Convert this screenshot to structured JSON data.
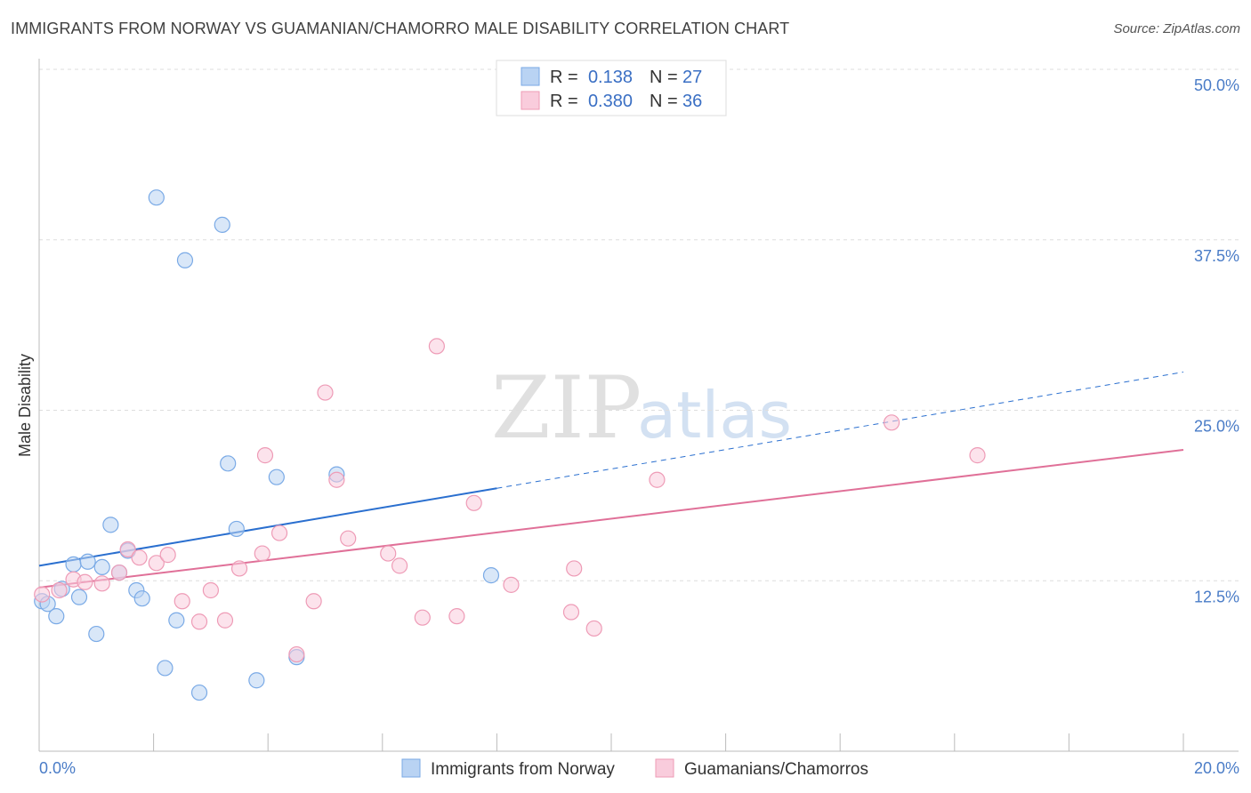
{
  "header": {
    "title": "IMMIGRANTS FROM NORWAY VS GUAMANIAN/CHAMORRO MALE DISABILITY CORRELATION CHART",
    "source": "Source: ZipAtlas.com"
  },
  "watermark": {
    "zip": "ZIP",
    "atlas": "atlas"
  },
  "chart_data": {
    "type": "scatter",
    "title": "IMMIGRANTS FROM NORWAY VS GUAMANIAN/CHAMORRO MALE DISABILITY CORRELATION CHART",
    "xlabel": "",
    "ylabel": "Male Disability",
    "xlim": [
      0,
      20
    ],
    "ylim": [
      0,
      50
    ],
    "x_tick_labels": [
      "0.0%",
      "20.0%"
    ],
    "y_ticks": [
      12.5,
      25.0,
      37.5,
      50.0
    ],
    "y_tick_labels": [
      "12.5%",
      "25.0%",
      "37.5%",
      "50.0%"
    ],
    "grid": true,
    "legend_placement": "top-center",
    "legend": {
      "rows": [
        {
          "r_label": "R =",
          "r_value": "0.138",
          "n_label": "N =",
          "n_value": "27"
        },
        {
          "r_label": "R =",
          "r_value": "0.380",
          "n_label": "N =",
          "n_value": "36"
        }
      ]
    },
    "series": [
      {
        "name": "Immigrants from Norway",
        "color": "#7aaae6",
        "fill": "#b9d3f3",
        "line_color": "#2a6fcf",
        "trend": {
          "x0": 0,
          "y0": 13.6,
          "x1": 20,
          "y1": 27.8,
          "solid_until": 8.0
        },
        "points": [
          {
            "x": 0.05,
            "y": 11.0
          },
          {
            "x": 0.15,
            "y": 10.8
          },
          {
            "x": 0.3,
            "y": 9.9
          },
          {
            "x": 0.4,
            "y": 11.9
          },
          {
            "x": 0.6,
            "y": 13.7
          },
          {
            "x": 0.7,
            "y": 11.3
          },
          {
            "x": 0.85,
            "y": 13.9
          },
          {
            "x": 1.0,
            "y": 8.6
          },
          {
            "x": 1.1,
            "y": 13.5
          },
          {
            "x": 1.25,
            "y": 16.6
          },
          {
            "x": 1.4,
            "y": 13.1
          },
          {
            "x": 1.55,
            "y": 14.7
          },
          {
            "x": 1.7,
            "y": 11.8
          },
          {
            "x": 1.8,
            "y": 11.2
          },
          {
            "x": 2.05,
            "y": 40.6
          },
          {
            "x": 2.2,
            "y": 6.1
          },
          {
            "x": 2.4,
            "y": 9.6
          },
          {
            "x": 2.55,
            "y": 36.0
          },
          {
            "x": 2.8,
            "y": 4.3
          },
          {
            "x": 3.2,
            "y": 38.6
          },
          {
            "x": 3.3,
            "y": 21.1
          },
          {
            "x": 3.45,
            "y": 16.3
          },
          {
            "x": 3.8,
            "y": 5.2
          },
          {
            "x": 4.15,
            "y": 20.1
          },
          {
            "x": 4.5,
            "y": 6.9
          },
          {
            "x": 5.2,
            "y": 20.3
          },
          {
            "x": 7.9,
            "y": 12.9
          }
        ]
      },
      {
        "name": "Guamanians/Chamorros",
        "color": "#ee9bb6",
        "fill": "#f9ccdc",
        "line_color": "#e07098",
        "trend": {
          "x0": 0,
          "y0": 12.0,
          "x1": 20,
          "y1": 22.1,
          "solid_until": 20
        },
        "points": [
          {
            "x": 0.05,
            "y": 11.5
          },
          {
            "x": 0.35,
            "y": 11.8
          },
          {
            "x": 0.6,
            "y": 12.6
          },
          {
            "x": 0.8,
            "y": 12.4
          },
          {
            "x": 1.1,
            "y": 12.3
          },
          {
            "x": 1.4,
            "y": 13.1
          },
          {
            "x": 1.55,
            "y": 14.8
          },
          {
            "x": 1.75,
            "y": 14.2
          },
          {
            "x": 2.05,
            "y": 13.8
          },
          {
            "x": 2.25,
            "y": 14.4
          },
          {
            "x": 2.5,
            "y": 11.0
          },
          {
            "x": 2.8,
            "y": 9.5
          },
          {
            "x": 3.0,
            "y": 11.8
          },
          {
            "x": 3.25,
            "y": 9.6
          },
          {
            "x": 3.5,
            "y": 13.4
          },
          {
            "x": 3.9,
            "y": 14.5
          },
          {
            "x": 3.95,
            "y": 21.7
          },
          {
            "x": 4.2,
            "y": 16.0
          },
          {
            "x": 4.5,
            "y": 7.1
          },
          {
            "x": 4.8,
            "y": 11.0
          },
          {
            "x": 5.0,
            "y": 26.3
          },
          {
            "x": 5.2,
            "y": 19.9
          },
          {
            "x": 5.4,
            "y": 15.6
          },
          {
            "x": 6.1,
            "y": 14.5
          },
          {
            "x": 6.3,
            "y": 13.6
          },
          {
            "x": 6.7,
            "y": 9.8
          },
          {
            "x": 6.95,
            "y": 29.7
          },
          {
            "x": 7.3,
            "y": 9.9
          },
          {
            "x": 7.6,
            "y": 18.2
          },
          {
            "x": 8.25,
            "y": 12.2
          },
          {
            "x": 9.3,
            "y": 10.2
          },
          {
            "x": 9.35,
            "y": 13.4
          },
          {
            "x": 9.7,
            "y": 9.0
          },
          {
            "x": 10.8,
            "y": 19.9
          },
          {
            "x": 14.9,
            "y": 24.1
          },
          {
            "x": 16.4,
            "y": 21.7
          }
        ]
      }
    ]
  }
}
